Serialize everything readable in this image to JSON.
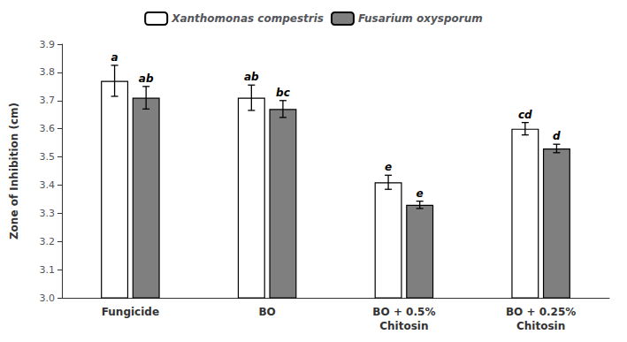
{
  "chart_data": {
    "type": "bar",
    "categories": [
      "Fungicide",
      "BO",
      "BO + 0.5%\nChitosin",
      "BO + 0.25%\nChitosin"
    ],
    "ylabel": "Zone of Inhibition (cm)",
    "ylim": [
      3.0,
      3.9
    ],
    "yticks": [
      {
        "value": 3.0,
        "label": "3.0"
      },
      3.1,
      3.2,
      3.3,
      3.4,
      3.5,
      3.6,
      3.7,
      3.8,
      3.9
    ],
    "grid": false,
    "legend": "top",
    "series": [
      {
        "name": "Xanthomonas compestris",
        "color": "#ffffff",
        "values": [
          3.77,
          3.71,
          3.41,
          3.6
        ],
        "errors": [
          0.055,
          0.045,
          0.025,
          0.022
        ],
        "labels": [
          "a",
          "ab",
          "e",
          "cd"
        ]
      },
      {
        "name": "Fusarium oxysporum",
        "color": "#7f7f7f",
        "values": [
          3.71,
          3.67,
          3.33,
          3.53
        ],
        "errors": [
          0.04,
          0.03,
          0.013,
          0.015
        ],
        "labels": [
          "ab",
          "bc",
          "e",
          "d"
        ]
      }
    ]
  }
}
